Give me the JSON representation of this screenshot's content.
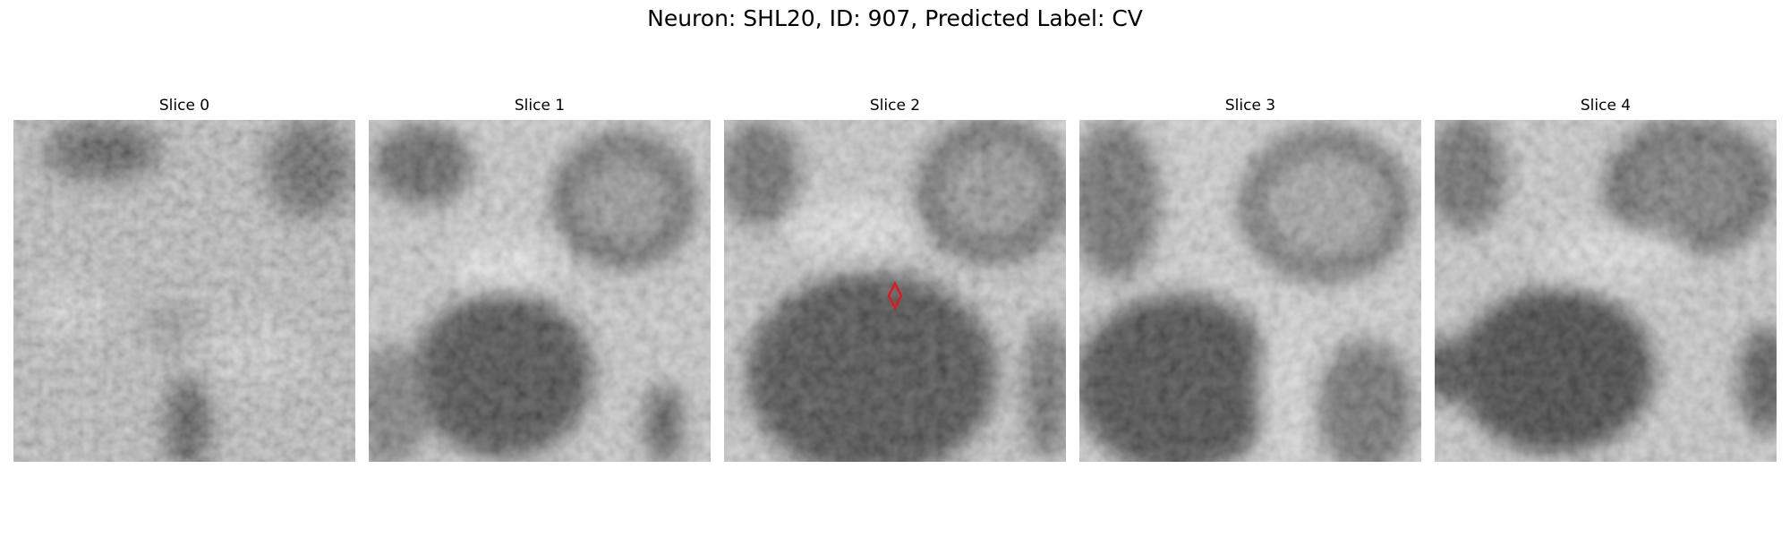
{
  "figure": {
    "title": "Neuron: SHL20, ID: 907, Predicted Label: CV"
  },
  "panels": [
    {
      "title": "Slice 0"
    },
    {
      "title": "Slice 1"
    },
    {
      "title": "Slice 2"
    },
    {
      "title": "Slice 3"
    },
    {
      "title": "Slice 4"
    }
  ],
  "marker": {
    "color": "#e8141b",
    "slice": "Slice 2"
  },
  "colormap": "grayscale"
}
